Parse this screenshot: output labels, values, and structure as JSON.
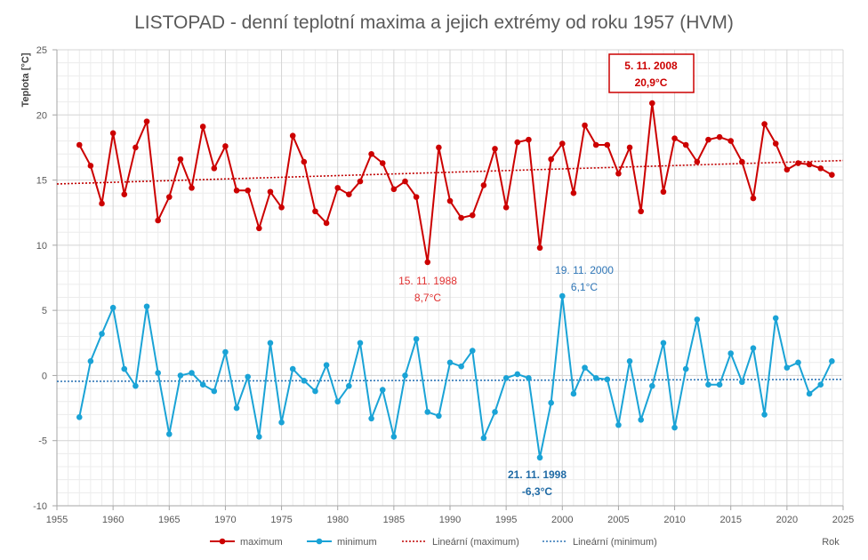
{
  "chart_data": {
    "type": "line",
    "title": "LISTOPAD - denní teplotní maxima a jejich extrémy od roku 1957 (HVM)",
    "ylabel": "Teplota [°C]",
    "xlabel": "Rok",
    "xlim": [
      1955,
      2025
    ],
    "ylim": [
      -10,
      25
    ],
    "x_ticks": [
      1955,
      1960,
      1965,
      1970,
      1975,
      1980,
      1985,
      1990,
      1995,
      2000,
      2005,
      2010,
      2015,
      2020,
      2025
    ],
    "y_ticks": [
      -10,
      -5,
      0,
      5,
      10,
      15,
      20,
      25
    ],
    "grid": true,
    "legend_position": "bottom",
    "x": [
      1957,
      1958,
      1959,
      1960,
      1961,
      1962,
      1963,
      1964,
      1965,
      1966,
      1967,
      1968,
      1969,
      1970,
      1971,
      1972,
      1973,
      1974,
      1975,
      1976,
      1977,
      1978,
      1979,
      1980,
      1981,
      1982,
      1983,
      1984,
      1985,
      1986,
      1987,
      1988,
      1989,
      1990,
      1991,
      1992,
      1993,
      1994,
      1995,
      1996,
      1997,
      1998,
      1999,
      2000,
      2001,
      2002,
      2003,
      2004,
      2005,
      2006,
      2007,
      2008,
      2009,
      2010,
      2011,
      2012,
      2013,
      2014,
      2015,
      2016,
      2017,
      2018,
      2019,
      2020,
      2021,
      2022,
      2023,
      2024
    ],
    "series": [
      {
        "name": "maximum",
        "color": "#cc0000",
        "values": [
          17.7,
          16.1,
          13.2,
          18.6,
          13.9,
          17.5,
          19.5,
          11.9,
          13.7,
          16.6,
          14.4,
          19.1,
          15.9,
          17.6,
          14.2,
          14.2,
          11.3,
          14.1,
          12.9,
          18.4,
          16.4,
          12.6,
          11.7,
          14.4,
          13.9,
          14.9,
          17.0,
          16.3,
          14.3,
          14.9,
          13.7,
          8.7,
          17.5,
          13.4,
          12.1,
          12.3,
          14.6,
          17.4,
          12.9,
          17.9,
          18.1,
          9.8,
          16.6,
          17.8,
          14.0,
          19.2,
          17.7,
          17.7,
          15.5,
          17.5,
          12.6,
          20.9,
          14.1,
          18.2,
          17.7,
          16.4,
          18.1,
          18.3,
          18.0,
          16.4,
          13.6,
          19.3,
          17.8,
          15.8,
          16.3,
          16.2,
          15.9,
          15.4
        ]
      },
      {
        "name": "minimum",
        "color": "#1aa3d6",
        "values": [
          -3.2,
          1.1,
          3.2,
          5.2,
          0.5,
          -0.8,
          5.3,
          0.2,
          -4.5,
          0.0,
          0.2,
          -0.7,
          -1.2,
          1.8,
          -2.5,
          -0.1,
          -4.7,
          2.5,
          -3.6,
          0.5,
          -0.4,
          -1.2,
          0.8,
          -2.0,
          -0.8,
          2.5,
          -3.3,
          -1.1,
          -4.7,
          0.0,
          2.8,
          -2.8,
          -3.1,
          1.0,
          0.7,
          1.9,
          -4.8,
          -2.8,
          -0.2,
          0.1,
          -0.2,
          -6.3,
          -2.1,
          6.1,
          -1.4,
          0.6,
          -0.2,
          -0.3,
          -3.8,
          1.1,
          -3.4,
          -0.8,
          2.5,
          -4.0,
          0.5,
          4.3,
          -0.7,
          -0.7,
          1.7,
          -0.5,
          2.1,
          -3.0,
          4.4,
          0.6,
          1.0,
          -1.4,
          -0.7,
          1.1
        ]
      },
      {
        "name": "Lineární (maximum)",
        "color": "#c00000",
        "style": "dotted",
        "trend_x": [
          1955,
          2025
        ],
        "trend_y": [
          14.7,
          16.5
        ]
      },
      {
        "name": "Lineární (minimum)",
        "color": "#2e75b6",
        "style": "dotted",
        "trend_x": [
          1955,
          2025
        ],
        "trend_y": [
          -0.45,
          -0.3
        ]
      }
    ],
    "annotations": [
      {
        "date": "5. 11. 2008",
        "value": "20,9°C",
        "color": "#cc0000",
        "boxed": true,
        "bold": true
      },
      {
        "date": "15. 11. 1988",
        "value": "8,7°C",
        "color": "#e03030",
        "boxed": false,
        "bold": false
      },
      {
        "date": "19. 11. 2000",
        "value": "6,1°C",
        "color": "#2e75b6",
        "boxed": false,
        "bold": false
      },
      {
        "date": "21. 11. 1998",
        "value": "-6,3°C",
        "color": "#1f6aa5",
        "boxed": false,
        "bold": true
      }
    ]
  }
}
